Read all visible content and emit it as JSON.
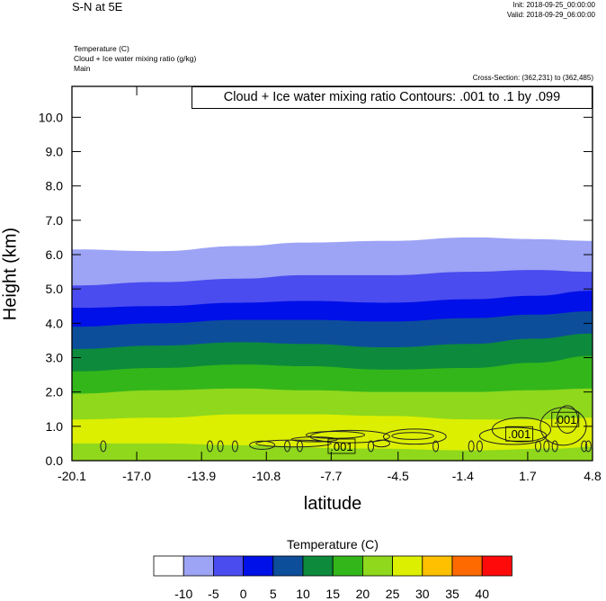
{
  "header": {
    "title": "S-N at 5E",
    "init": "Init: 2018-09-25_00:00:00",
    "valid": "Valid: 2018-09-29_06:00:00",
    "field_lines": [
      "Temperature   (C)",
      "Cloud + Ice water mixing ratio   (g/kg)",
      "Main"
    ],
    "cross_section": "Cross-Section: (362,231) to (362,485)"
  },
  "chart_data": {
    "type": "contour_cross_section",
    "xlabel": "latitude",
    "ylabel": "Height (km)",
    "x_ticks": [
      "-20.1",
      "-17.0",
      "-13.9",
      "-10.8",
      "-7.7",
      "-4.5",
      "-1.4",
      "1.7",
      "4.8"
    ],
    "xlim": [
      -20.1,
      4.8
    ],
    "y_ticks": [
      "0.0",
      "1.0",
      "2.0",
      "3.0",
      "4.0",
      "5.0",
      "6.0",
      "7.0",
      "8.0",
      "9.0",
      "10.0"
    ],
    "ylim": [
      0,
      10.9
    ],
    "annotation": "Cloud + Ice water mixing ratio Contours: .001 to .1 by .099",
    "contour_labels": [
      {
        "text": ".001",
        "lat": -7.2,
        "height": 0.42
      },
      {
        "text": ".001",
        "lat": 1.3,
        "height": 0.78
      },
      {
        "text": ".001",
        "lat": 3.5,
        "height": 1.2
      }
    ],
    "temperature_fill_boundaries": [
      {
        "level": 20,
        "lat": [
          -20.1,
          -16,
          -12,
          -9,
          -5,
          -1,
          2,
          4.8
        ],
        "height": [
          1.2,
          1.25,
          1.35,
          1.35,
          1.3,
          1.2,
          1.2,
          1.25
        ]
      },
      {
        "level": 15,
        "lat": [
          -20.1,
          -16,
          -12,
          -9,
          -5,
          -1,
          2,
          4.8
        ],
        "height": [
          1.95,
          2.05,
          2.1,
          2.05,
          2.0,
          2.0,
          2.05,
          2.1
        ]
      },
      {
        "level": 10,
        "lat": [
          -20.1,
          -16,
          -12,
          -9,
          -5,
          -1,
          2,
          4.8
        ],
        "height": [
          2.6,
          2.7,
          2.8,
          2.75,
          2.65,
          2.7,
          2.85,
          3.05
        ]
      },
      {
        "level": 5,
        "lat": [
          -20.1,
          -16,
          -12,
          -9,
          -5,
          -1,
          2,
          4.8
        ],
        "height": [
          3.25,
          3.35,
          3.45,
          3.4,
          3.3,
          3.4,
          3.55,
          3.7
        ]
      },
      {
        "level": 0,
        "lat": [
          -20.1,
          -16,
          -12,
          -9,
          -5,
          -1,
          2,
          4.8
        ],
        "height": [
          3.9,
          4.0,
          4.1,
          4.1,
          4.05,
          4.15,
          4.25,
          4.35
        ]
      },
      {
        "level": -5,
        "lat": [
          -20.1,
          -16,
          -12,
          -9,
          -5,
          -1,
          2,
          4.8
        ],
        "height": [
          4.45,
          4.5,
          4.6,
          4.65,
          4.6,
          4.7,
          4.8,
          4.95
        ]
      },
      {
        "level": -10,
        "lat": [
          -20.1,
          -16,
          -12,
          -9,
          -5,
          -1,
          2,
          4.8
        ],
        "height": [
          5.1,
          5.2,
          5.3,
          5.4,
          5.4,
          5.5,
          5.55,
          5.5
        ]
      },
      {
        "level": -15,
        "lat": [
          -20.1,
          -16,
          -12,
          -9,
          -5,
          -1,
          2,
          4.8
        ],
        "height": [
          6.15,
          6.1,
          6.25,
          6.35,
          6.4,
          6.5,
          6.45,
          6.4
        ]
      }
    ]
  },
  "colorbar": {
    "title": "Temperature  (C)",
    "labels": [
      "-10",
      "-5",
      "0",
      "5",
      "10",
      "15",
      "20",
      "25",
      "30",
      "35",
      "40"
    ],
    "colors": [
      "#ffffff",
      "#9da3f5",
      "#4a4cef",
      "#0010e8",
      "#0d4e9b",
      "#0d8a3c",
      "#33b61a",
      "#8fd81c",
      "#dcef00",
      "#ffc000",
      "#ff6a00",
      "#ff0a0a"
    ]
  }
}
